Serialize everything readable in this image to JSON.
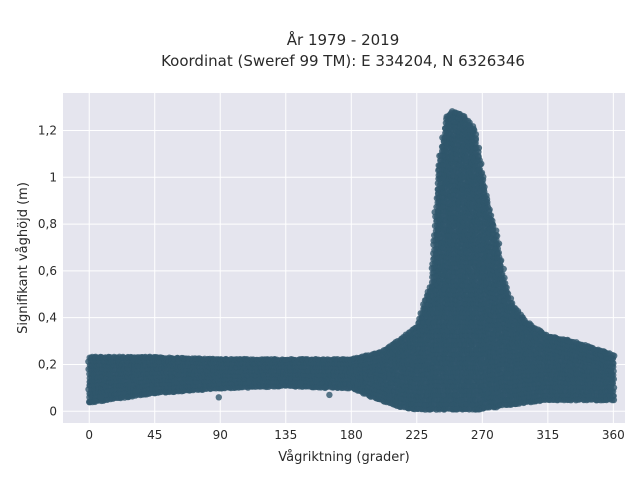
{
  "chart_data": {
    "type": "scatter",
    "title_line1": "År 1979 - 2019",
    "title_line2": "Koordinat (Sweref 99 TM): E 334204, N 6326346",
    "xlabel": "Vågriktning (grader)",
    "ylabel": "Signifikant våghöjd (m)",
    "xlim": [
      -18,
      368
    ],
    "ylim": [
      -0.05,
      1.36
    ],
    "x_ticks": [
      0,
      45,
      90,
      135,
      180,
      225,
      270,
      315,
      360
    ],
    "x_tick_labels": [
      "0",
      "45",
      "90",
      "135",
      "180",
      "225",
      "270",
      "315",
      "360"
    ],
    "y_ticks": [
      0,
      0.2,
      0.4,
      0.6,
      0.8,
      1.0,
      1.2
    ],
    "y_tick_labels": [
      "0",
      "0,2",
      "0,4",
      "0,6",
      "0,8",
      "1",
      "1,2"
    ],
    "grid": true,
    "marker_color": "#2f566b",
    "plot_background": "#e5e5ee",
    "envelope": {
      "x": [
        0,
        45,
        90,
        135,
        180,
        200,
        215,
        225,
        235,
        240,
        245,
        250,
        255,
        260,
        265,
        270,
        275,
        280,
        285,
        290,
        300,
        315,
        330,
        345,
        360
      ],
      "y_max": [
        0.23,
        0.23,
        0.22,
        0.22,
        0.22,
        0.25,
        0.31,
        0.36,
        0.55,
        1.05,
        1.25,
        1.28,
        1.27,
        1.24,
        1.2,
        1.02,
        0.86,
        0.75,
        0.57,
        0.46,
        0.38,
        0.32,
        0.3,
        0.27,
        0.24
      ],
      "y_min": [
        0.04,
        0.08,
        0.1,
        0.11,
        0.1,
        0.05,
        0.02,
        0.01,
        0.01,
        0.01,
        0.01,
        0.01,
        0.01,
        0.01,
        0.01,
        0.01,
        0.02,
        0.02,
        0.03,
        0.03,
        0.04,
        0.05,
        0.05,
        0.05,
        0.05
      ]
    },
    "outliers": [
      {
        "x": 0,
        "y": 0.04
      },
      {
        "x": 4,
        "y": 0.04
      },
      {
        "x": 8,
        "y": 0.06
      },
      {
        "x": 89,
        "y": 0.06
      },
      {
        "x": 165,
        "y": 0.07
      },
      {
        "x": 162,
        "y": 0.1
      },
      {
        "x": 145,
        "y": 0.12
      }
    ]
  }
}
